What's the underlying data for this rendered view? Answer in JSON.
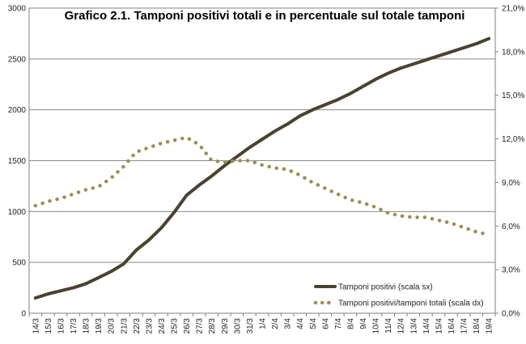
{
  "chart_data": {
    "type": "line",
    "title": "Grafico 2.1. Tamponi positivi totali e in percentuale sul totale tamponi",
    "categories": [
      "14/3",
      "15/3",
      "16/3",
      "17/3",
      "18/3",
      "19/3",
      "20/3",
      "21/3",
      "22/3",
      "23/3",
      "24/3",
      "25/3",
      "26/3",
      "27/3",
      "28/3",
      "29/3",
      "30/3",
      "31/3",
      "1/4",
      "2/4",
      "3/4",
      "4/4",
      "5/4",
      "6/4",
      "7/4",
      "8/4",
      "9/4",
      "10/4",
      "11/4",
      "12/4",
      "13/4",
      "14/4",
      "15/4",
      "16/4",
      "17/4",
      "18/4",
      "19/4"
    ],
    "y_left": {
      "ylim": [
        0,
        3000
      ],
      "ticks": [
        "0",
        "500",
        "1000",
        "1500",
        "2000",
        "2500",
        "3000"
      ]
    },
    "y_right": {
      "ylim": [
        0,
        21
      ],
      "ticks": [
        "0,0%",
        "3,0%",
        "6,0%",
        "9,0%",
        "12,0%",
        "15,0%",
        "18,0%",
        "21,0%"
      ]
    },
    "grid": true,
    "legend_position": "bottom-right",
    "series": [
      {
        "name": "Tamponi positivi (scala sx)",
        "axis": "left",
        "style": "solid",
        "color": "#4a4230",
        "values": [
          150,
          190,
          220,
          250,
          290,
          350,
          410,
          485,
          620,
          720,
          840,
          990,
          1160,
          1260,
          1350,
          1450,
          1540,
          1630,
          1710,
          1790,
          1860,
          1940,
          2000,
          2050,
          2100,
          2160,
          2230,
          2300,
          2360,
          2410,
          2450,
          2490,
          2530,
          2570,
          2610,
          2650,
          2700
        ]
      },
      {
        "name": "Tamponi positivi/tamponi totali (scala dx)",
        "axis": "right",
        "style": "dotted",
        "color": "#9b8f58",
        "values": [
          7.4,
          7.7,
          7.9,
          8.2,
          8.5,
          8.7,
          9.3,
          10.1,
          11.1,
          11.4,
          11.7,
          11.9,
          12.1,
          11.6,
          10.5,
          10.4,
          10.5,
          10.5,
          10.2,
          10.0,
          9.9,
          9.5,
          9.0,
          8.6,
          8.2,
          7.8,
          7.6,
          7.3,
          6.9,
          6.7,
          6.6,
          6.6,
          6.4,
          6.2,
          5.9,
          5.6,
          5.4
        ]
      }
    ]
  }
}
